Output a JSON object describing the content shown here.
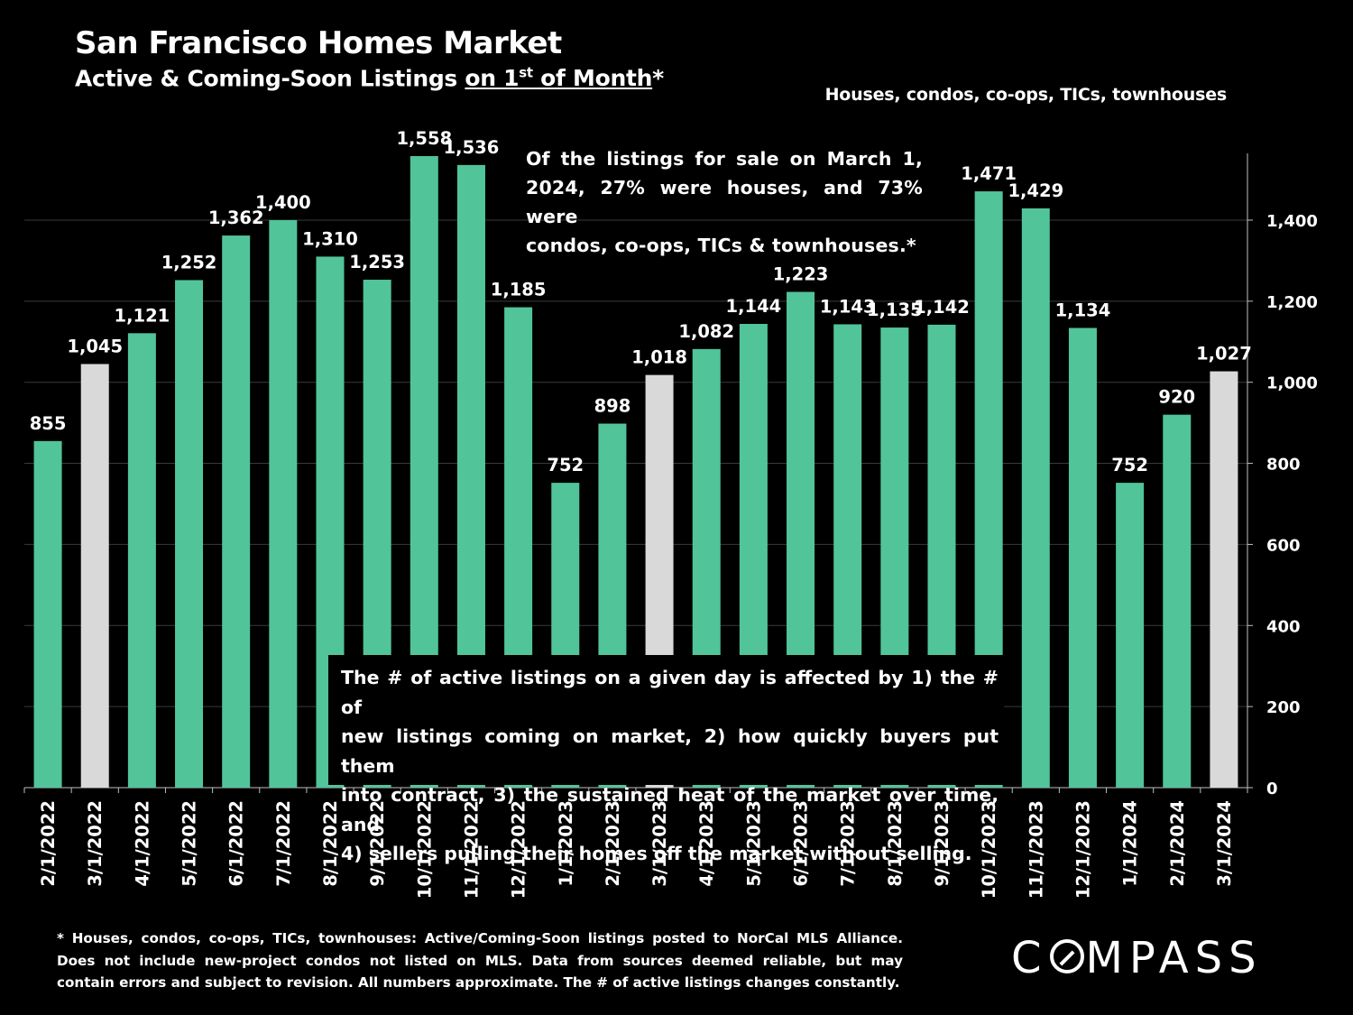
{
  "title": "San Francisco Homes Market",
  "subtitle": {
    "prefix": "Active & Coming-Soon Listings ",
    "underlined_part": "on 1",
    "superscript": "st",
    "underlined_tail": " of Month",
    "suffix": "*"
  },
  "property_types_note": "Houses, condos, co-ops, TICs, townhouses",
  "callout_top": [
    "Of the listings for sale on March 1,",
    "2024, 27% were houses, and 73% were",
    "condos, co-ops, TICs & townhouses.*"
  ],
  "callout_box": [
    "The # of active listings on a given day is affected by 1) the # of",
    "new listings coming on market, 2) how quickly buyers put them",
    "into contract, 3) the sustained heat of the market over time, and",
    "4) sellers pulling their homes off the market without selling."
  ],
  "footnote": [
    "* Houses, condos, co-ops, TICs, townhouses: Active/Coming-Soon listings posted to NorCal MLS Alliance.",
    "Does not include new-project condos not listed on MLS. Data from sources deemed reliable, but may",
    "contain errors and subject to revision. All numbers approximate. The # of active listings changes constantly."
  ],
  "logo": {
    "before": "C",
    "after": "MPASS"
  },
  "colors": {
    "bar_default": "#52c49a",
    "bar_highlight": "#d9d9d9",
    "background": "#000000",
    "text": "#ffffff",
    "axis": "#bfbfbf"
  },
  "chart_data": {
    "type": "bar",
    "categories": [
      "2/1/2022",
      "3/1/2022",
      "4/1/2022",
      "5/1/2022",
      "6/1/2022",
      "7/1/2022",
      "8/1/2022",
      "9/1/2022",
      "10/1/2022",
      "11/1/2022",
      "12/1/2022",
      "1/1/2023",
      "2/1/2023",
      "3/1/2023",
      "4/1/2023",
      "5/1/2023",
      "6/1/2023",
      "7/1/2023",
      "8/1/2023",
      "9/1/2023",
      "10/1/2023",
      "11/1/2023",
      "12/1/2023",
      "1/1/2024",
      "2/1/2024",
      "3/1/2024"
    ],
    "values": [
      855,
      1045,
      1121,
      1252,
      1362,
      1400,
      1310,
      1253,
      1558,
      1536,
      1185,
      752,
      898,
      1018,
      1082,
      1144,
      1223,
      1143,
      1135,
      1142,
      1471,
      1429,
      1134,
      752,
      920,
      1027
    ],
    "value_labels": [
      "855",
      "1,045",
      "1,121",
      "1,252",
      "1,362",
      "1,400",
      "1,310",
      "1,253",
      "1,558",
      "1,536",
      "1,185",
      "752",
      "898",
      "1,018",
      "1,082",
      "1,144",
      "1,223",
      "1,143",
      "1,135",
      "1,142",
      "1,471",
      "1,429",
      "1,134",
      "752",
      "920",
      "1,027"
    ],
    "highlighted_categories": [
      "3/1/2022",
      "3/1/2023",
      "3/1/2024"
    ],
    "y_ticks": [
      0,
      200,
      400,
      600,
      800,
      1000,
      1200,
      1400
    ],
    "y_tick_labels": [
      "0",
      "200",
      "400",
      "600",
      "800",
      "1,000",
      "1,200",
      "1,400"
    ],
    "ylim": [
      0,
      1570
    ],
    "y_axis_side": "right",
    "grid": "horizontal major lines"
  }
}
